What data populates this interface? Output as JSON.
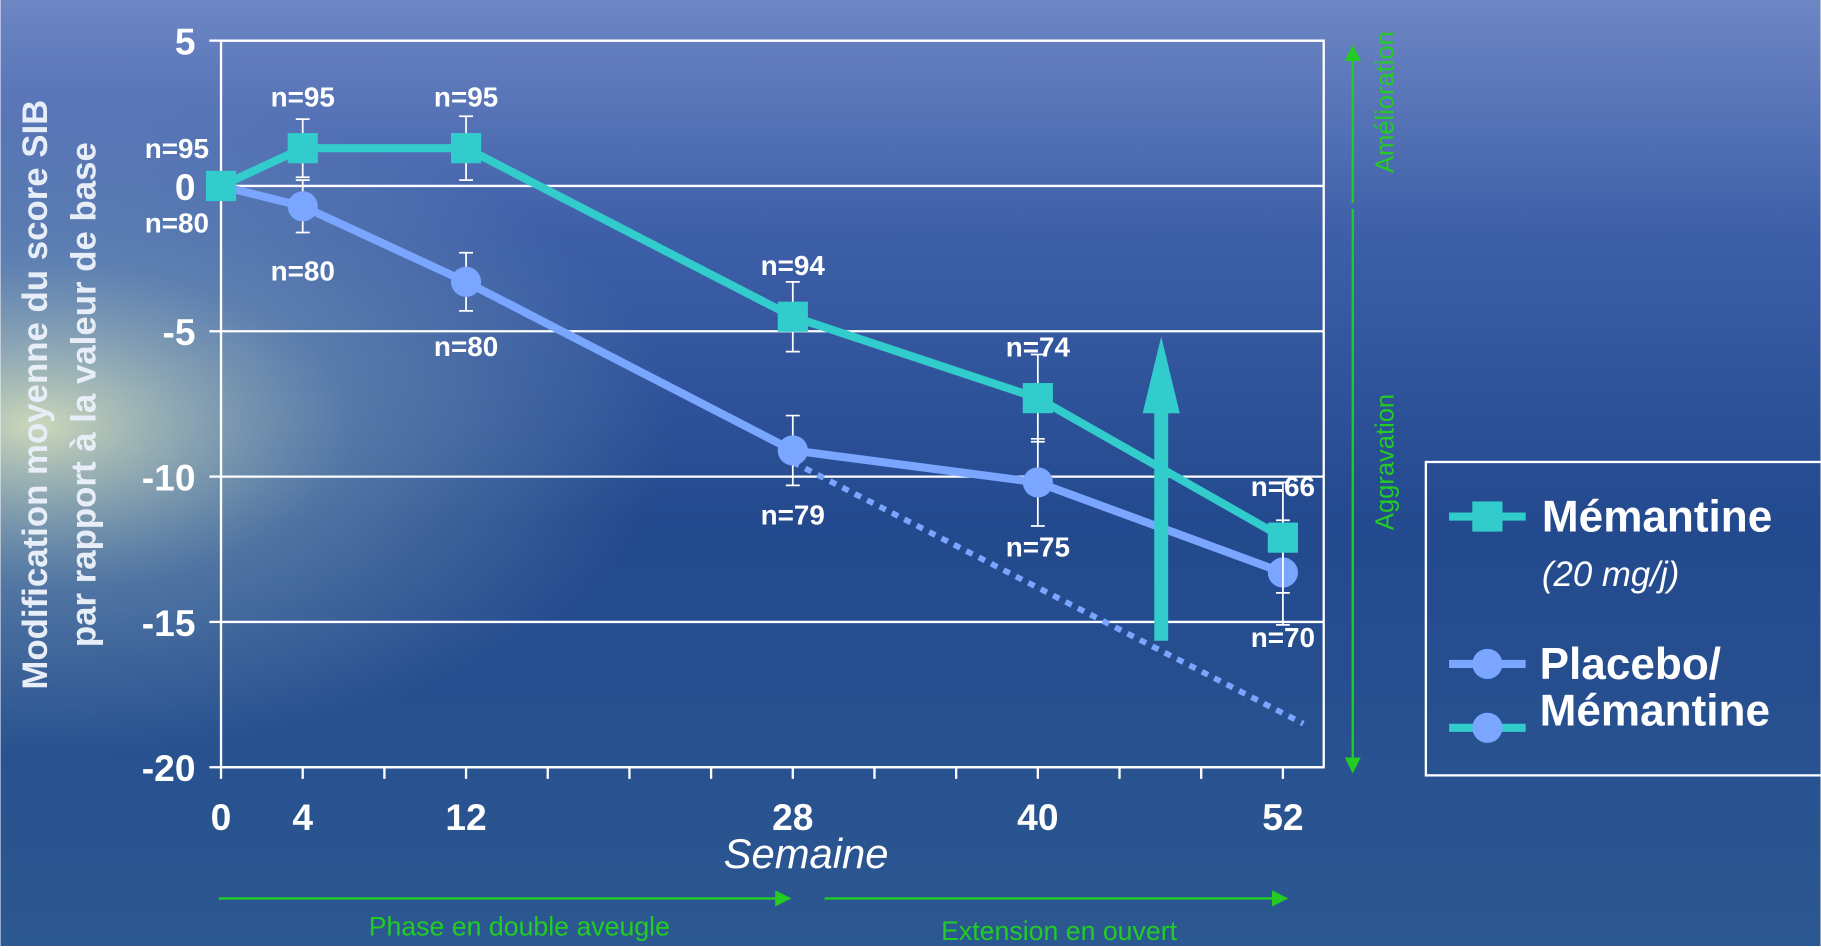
{
  "chart_data": {
    "type": "line",
    "y_label": [
      "Modification moyenne du score SIB",
      "par rapport à la valeur de base"
    ],
    "x_label": "Semaine",
    "x": [
      0,
      4,
      12,
      28,
      40,
      52
    ],
    "xlim": [
      0,
      54
    ],
    "xticks": [
      0,
      4,
      12,
      28,
      40,
      52
    ],
    "xminor_ticks": [
      8,
      16,
      20,
      24,
      32,
      36,
      44,
      48
    ],
    "ylim": [
      -20,
      5
    ],
    "yticks": [
      5,
      0,
      -5,
      -10,
      -15,
      -20
    ],
    "grid": true,
    "series": [
      {
        "name": "Mémantine",
        "note": "(20 mg/j)",
        "color": "#33cccc",
        "marker": "square",
        "values": [
          0,
          1.3,
          1.3,
          -4.5,
          -7.3,
          -12.1
        ],
        "errors": [
          0,
          1.0,
          1.1,
          1.2,
          1.5,
          1.9
        ],
        "n_labels": [
          "n=95",
          "n=95",
          "n=95",
          "n=94",
          "n=74",
          "n=66"
        ]
      },
      {
        "name": "Placebo/ Mémantine",
        "color": "#7aa6ff",
        "marker": "circle",
        "values": [
          0,
          -0.7,
          -3.3,
          -9.1,
          -10.2,
          -13.3
        ],
        "errors": [
          0,
          0.9,
          1.0,
          1.2,
          1.5,
          1.8
        ],
        "n_labels": [
          "n=80",
          "n=80",
          "n=80",
          "n=79",
          "n=75",
          "n=70"
        ]
      }
    ],
    "projection": {
      "color": "#7aa6ff",
      "x": [
        28,
        53
      ],
      "values": [
        -9.5,
        -18.5
      ]
    },
    "side_labels": {
      "up": "Amélioration",
      "down": "Aggravation"
    },
    "phases": [
      "Phase en double aveugle",
      "Extension en ouvert"
    ]
  }
}
